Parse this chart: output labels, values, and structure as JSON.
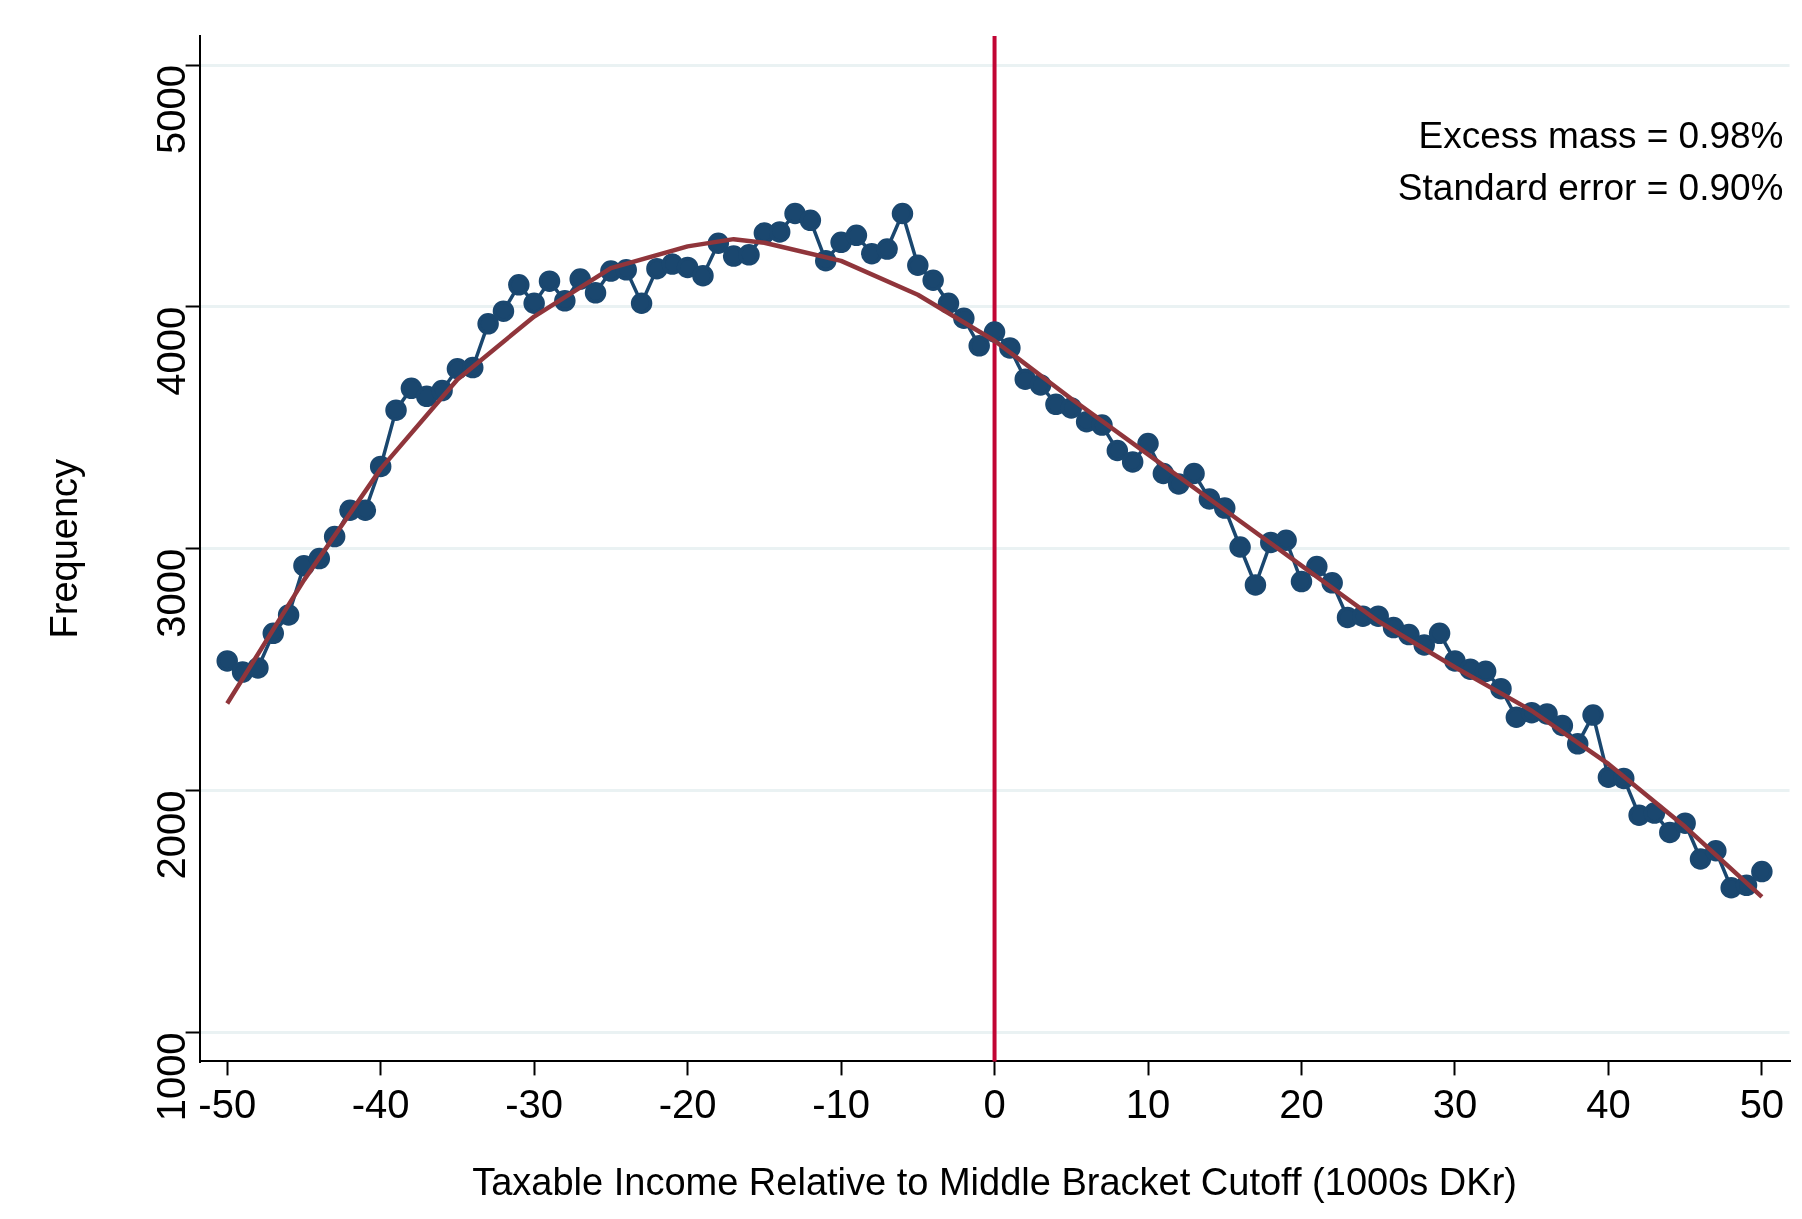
{
  "chart_data": {
    "type": "line",
    "xlabel": "Taxable Income Relative to Middle Bracket Cutoff (1000s DKr)",
    "ylabel": "Frequency",
    "annotations": [
      "Excess mass = 0.98%",
      "Standard error = 0.90%"
    ],
    "x": [
      -50,
      -49,
      -48,
      -47,
      -46,
      -45,
      -44,
      -43,
      -42,
      -41,
      -40,
      -39,
      -38,
      -37,
      -36,
      -35,
      -34,
      -33,
      -32,
      -31,
      -30,
      -29,
      -28,
      -27,
      -26,
      -25,
      -24,
      -23,
      -22,
      -21,
      -20,
      -19,
      -18,
      -17,
      -16,
      -15,
      -14,
      -13,
      -12,
      -11,
      -10,
      -9,
      -8,
      -7,
      -6,
      -5,
      -4,
      -3,
      -2,
      -1,
      0,
      1,
      2,
      3,
      4,
      5,
      6,
      7,
      8,
      9,
      10,
      11,
      12,
      13,
      14,
      15,
      16,
      17,
      18,
      19,
      20,
      21,
      22,
      23,
      24,
      25,
      26,
      27,
      28,
      29,
      30,
      31,
      32,
      33,
      34,
      35,
      36,
      37,
      38,
      39,
      40,
      41,
      42,
      43,
      44,
      45,
      46,
      47,
      48,
      49,
      50
    ],
    "series": [
      {
        "type": "line",
        "marker": "circle",
        "color": "#1a476f",
        "values": [
          2536,
          2490,
          2507,
          2650,
          2726,
          2930,
          2959,
          3050,
          3159,
          3159,
          3340,
          3573,
          3663,
          3630,
          3654,
          3744,
          3749,
          3930,
          3982,
          4091,
          4015,
          4106,
          4025,
          4115,
          4058,
          4148,
          4153,
          4015,
          4158,
          4177,
          4163,
          4129,
          4263,
          4210,
          4215,
          4305,
          4310,
          4386,
          4358,
          4191,
          4267,
          4296,
          4220,
          4239,
          4386,
          4172,
          4110,
          4015,
          3953,
          3839,
          3896,
          3830,
          3701,
          3677,
          3597,
          3582,
          3525,
          3511,
          3406,
          3359,
          3435,
          3311,
          3268,
          3311,
          3206,
          3168,
          3007,
          2850,
          3026,
          3035,
          2864,
          2926,
          2859,
          2716,
          2721,
          2721,
          2674,
          2645,
          2602,
          2650,
          2536,
          2502,
          2493,
          2421,
          2303,
          2322,
          2317,
          2269,
          2193,
          2312,
          2055,
          2050,
          1898,
          1907,
          1827,
          1865,
          1717,
          1751,
          1598,
          1608,
          1665
        ]
      },
      {
        "type": "line",
        "marker": "none",
        "color": "#90353b",
        "x": [
          -50,
          -45,
          -40,
          -35,
          -30,
          -25,
          -20,
          -17,
          -15,
          -10,
          -5,
          0,
          5,
          10,
          15,
          20,
          25,
          30,
          35,
          40,
          45,
          50
        ],
        "values": [
          2360,
          2870,
          3330,
          3700,
          3960,
          4160,
          4250,
          4280,
          4265,
          4190,
          4050,
          3860,
          3620,
          3390,
          3160,
          2930,
          2700,
          2510,
          2330,
          2110,
          1850,
          1560
        ]
      }
    ],
    "ref_lines": [
      {
        "axis": "x",
        "value": 0,
        "color": "#c10534"
      }
    ],
    "xlim": [
      -51.8,
      51.8
    ],
    "xticks": [
      -50,
      -40,
      -30,
      -20,
      -10,
      0,
      10,
      20,
      30,
      40,
      50
    ],
    "ylim": [
      880,
      5120
    ],
    "yticks": [
      1000,
      2000,
      3000,
      4000,
      5000
    ],
    "grid": "y",
    "legend": false
  }
}
